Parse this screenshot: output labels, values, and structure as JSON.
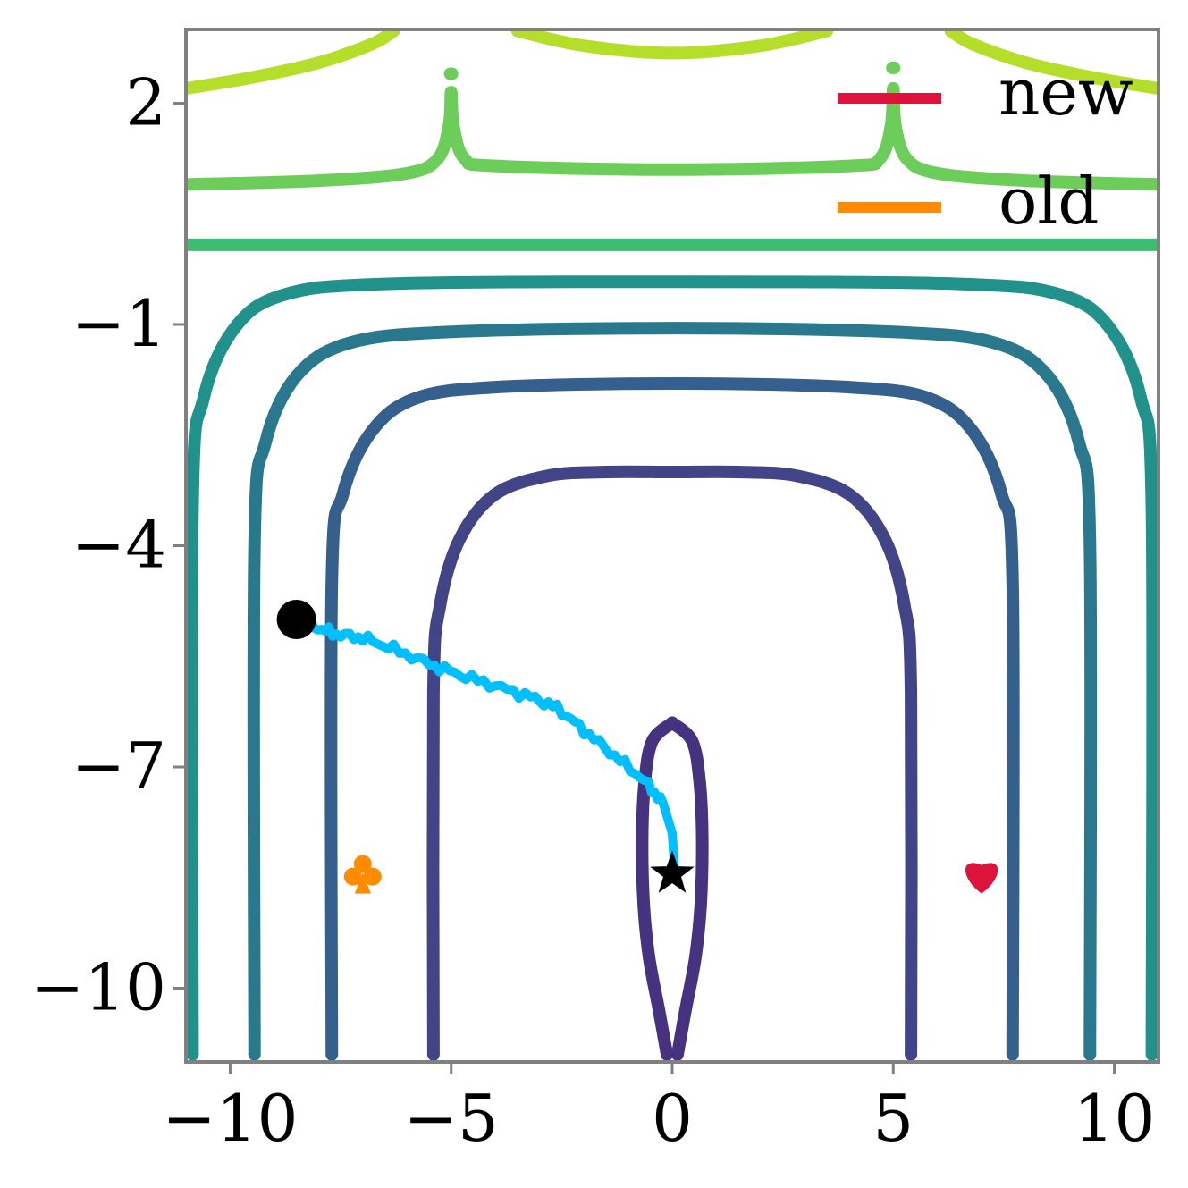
{
  "chart_data": {
    "type": "line",
    "title": "",
    "xlabel": "",
    "ylabel": "",
    "xlim": [
      -11,
      11
    ],
    "ylim": [
      -11,
      3
    ],
    "x_ticks": [
      {
        "value": -10,
        "label": "−10"
      },
      {
        "value": -5,
        "label": "−5"
      },
      {
        "value": 0,
        "label": "0"
      },
      {
        "value": 5,
        "label": "5"
      },
      {
        "value": 10,
        "label": "10"
      }
    ],
    "y_ticks": [
      {
        "value": 2,
        "label": "2"
      },
      {
        "value": -1,
        "label": "−1"
      },
      {
        "value": -4,
        "label": "−4"
      },
      {
        "value": -7,
        "label": "−7"
      },
      {
        "value": -10,
        "label": "−10"
      }
    ],
    "grid": false,
    "legend_position": "top-right",
    "legend": [
      {
        "label": "new",
        "color": "#dc143c"
      },
      {
        "label": "old",
        "color": "#ff8c00"
      }
    ],
    "contours": [
      {
        "level": 1,
        "color": "#46327e",
        "segments": [
          [
            [
              0,
              -6.4
            ],
            [
              0.45,
              -6.65
            ],
            [
              0.62,
              -7.2
            ],
            [
              0.68,
              -8.0
            ],
            [
              0.64,
              -8.9
            ],
            [
              0.52,
              -9.6
            ],
            [
              0.3,
              -10.3
            ],
            [
              0.12,
              -10.9
            ]
          ],
          [
            [
              0,
              -6.4
            ],
            [
              -0.45,
              -6.65
            ],
            [
              -0.62,
              -7.2
            ],
            [
              -0.68,
              -8.0
            ],
            [
              -0.64,
              -8.9
            ],
            [
              -0.52,
              -9.6
            ],
            [
              -0.3,
              -10.3
            ],
            [
              -0.12,
              -10.9
            ]
          ]
        ]
      },
      {
        "level": 2,
        "color": "#414487",
        "segments": [
          [
            [
              -5.4,
              -10.9
            ],
            [
              -5.4,
              -6.0
            ],
            [
              -5.25,
              -4.8
            ],
            [
              -4.8,
              -3.9
            ],
            [
              -4.0,
              -3.3
            ],
            [
              -2.8,
              -3.05
            ],
            [
              -1.5,
              -3.0
            ],
            [
              0,
              -3.0
            ],
            [
              1.5,
              -3.0
            ],
            [
              2.8,
              -3.05
            ],
            [
              4.0,
              -3.3
            ],
            [
              4.8,
              -3.9
            ],
            [
              5.25,
              -4.8
            ],
            [
              5.4,
              -6.0
            ],
            [
              5.4,
              -10.9
            ]
          ]
        ]
      },
      {
        "level": 3,
        "color": "#355f8d",
        "segments": [
          [
            [
              -7.7,
              -10.9
            ],
            [
              -7.7,
              -4.5
            ],
            [
              -7.45,
              -3.3
            ],
            [
              -6.8,
              -2.45
            ],
            [
              -5.8,
              -2.0
            ],
            [
              -4.0,
              -1.85
            ],
            [
              0,
              -1.8
            ],
            [
              4.0,
              -1.85
            ],
            [
              5.8,
              -2.0
            ],
            [
              6.8,
              -2.45
            ],
            [
              7.45,
              -3.3
            ],
            [
              7.7,
              -4.5
            ],
            [
              7.7,
              -10.9
            ]
          ]
        ]
      },
      {
        "level": 4,
        "color": "#2a788e",
        "segments": [
          [
            [
              -9.45,
              -10.9
            ],
            [
              -9.45,
              -4.0
            ],
            [
              -9.2,
              -2.6
            ],
            [
              -8.5,
              -1.7
            ],
            [
              -7.3,
              -1.25
            ],
            [
              -5.0,
              -1.1
            ],
            [
              0,
              -1.05
            ],
            [
              5.0,
              -1.1
            ],
            [
              7.3,
              -1.25
            ],
            [
              8.5,
              -1.7
            ],
            [
              9.2,
              -2.6
            ],
            [
              9.45,
              -4.0
            ],
            [
              9.45,
              -10.9
            ]
          ]
        ]
      },
      {
        "level": 5,
        "color": "#21918c",
        "segments": [
          [
            [
              -10.85,
              -10.9
            ],
            [
              -10.85,
              -3.5
            ],
            [
              -10.6,
              -2.0
            ],
            [
              -9.9,
              -1.05
            ],
            [
              -8.8,
              -0.6
            ],
            [
              -6.5,
              -0.45
            ],
            [
              0,
              -0.42
            ],
            [
              6.5,
              -0.45
            ],
            [
              8.8,
              -0.6
            ],
            [
              9.9,
              -1.05
            ],
            [
              10.6,
              -2.0
            ],
            [
              10.85,
              -3.5
            ],
            [
              10.85,
              -10.9
            ]
          ]
        ]
      },
      {
        "level": 6,
        "color": "#3dbc74",
        "segments": [
          [
            [
              -11,
              0.08
            ],
            [
              11,
              0.08
            ]
          ]
        ]
      },
      {
        "level": 7,
        "color": "#6ccd5a",
        "segments": [
          [
            [
              -11,
              0.9
            ],
            [
              -8.0,
              0.95
            ],
            [
              -6.0,
              1.05
            ],
            [
              -5.3,
              1.25
            ],
            [
              -5.05,
              1.7
            ],
            [
              -5.0,
              2.15
            ],
            [
              -4.95,
              1.7
            ],
            [
              -4.7,
              1.25
            ],
            [
              -4.0,
              1.15
            ],
            [
              0,
              1.1
            ],
            [
              4.0,
              1.15
            ],
            [
              4.7,
              1.25
            ],
            [
              4.95,
              1.7
            ],
            [
              5.0,
              2.2
            ],
            [
              5.05,
              1.7
            ],
            [
              5.3,
              1.25
            ],
            [
              6.0,
              1.05
            ],
            [
              8.0,
              0.95
            ],
            [
              11,
              0.9
            ]
          ],
          [
            [
              -5.02,
              2.4
            ],
            [
              -4.98,
              2.4
            ]
          ],
          [
            [
              4.98,
              2.48
            ],
            [
              5.02,
              2.48
            ]
          ]
        ]
      },
      {
        "level": 8,
        "color": "#b5de2b",
        "segments": [
          [
            [
              -11,
              2.2
            ],
            [
              -9.5,
              2.35
            ],
            [
              -8.0,
              2.55
            ],
            [
              -6.8,
              2.8
            ],
            [
              -6.3,
              2.98
            ]
          ],
          [
            [
              -3.5,
              2.98
            ],
            [
              -2.0,
              2.78
            ],
            [
              0,
              2.68
            ],
            [
              2.0,
              2.78
            ],
            [
              3.5,
              2.98
            ]
          ],
          [
            [
              6.3,
              2.98
            ],
            [
              6.8,
              2.8
            ],
            [
              8.0,
              2.55
            ],
            [
              9.5,
              2.35
            ],
            [
              11,
              2.2
            ]
          ]
        ]
      }
    ],
    "series": [
      {
        "name": "",
        "type": "path",
        "color": "#00bfff",
        "points": [
          [
            -8.5,
            -5.0
          ],
          [
            -8.1,
            -5.1
          ],
          [
            -7.6,
            -5.2
          ],
          [
            -7.0,
            -5.25
          ],
          [
            -6.3,
            -5.4
          ],
          [
            -5.5,
            -5.6
          ],
          [
            -4.8,
            -5.75
          ],
          [
            -4.0,
            -5.9
          ],
          [
            -3.2,
            -6.05
          ],
          [
            -2.6,
            -6.2
          ],
          [
            -2.0,
            -6.5
          ],
          [
            -1.3,
            -6.85
          ],
          [
            -0.6,
            -7.2
          ],
          [
            -0.2,
            -7.5
          ],
          [
            0.0,
            -7.9
          ],
          [
            0.05,
            -8.35
          ]
        ]
      }
    ],
    "markers": [
      {
        "symbol": "circle",
        "x": -8.5,
        "y": -5.0,
        "color": "#000000"
      },
      {
        "symbol": "star",
        "x": 0,
        "y": -8.45,
        "color": "#000000"
      },
      {
        "symbol": "club",
        "x": -7.0,
        "y": -8.45,
        "color": "#ff8c00"
      },
      {
        "symbol": "heart",
        "x": 7.0,
        "y": -8.45,
        "color": "#dc143c"
      }
    ]
  }
}
